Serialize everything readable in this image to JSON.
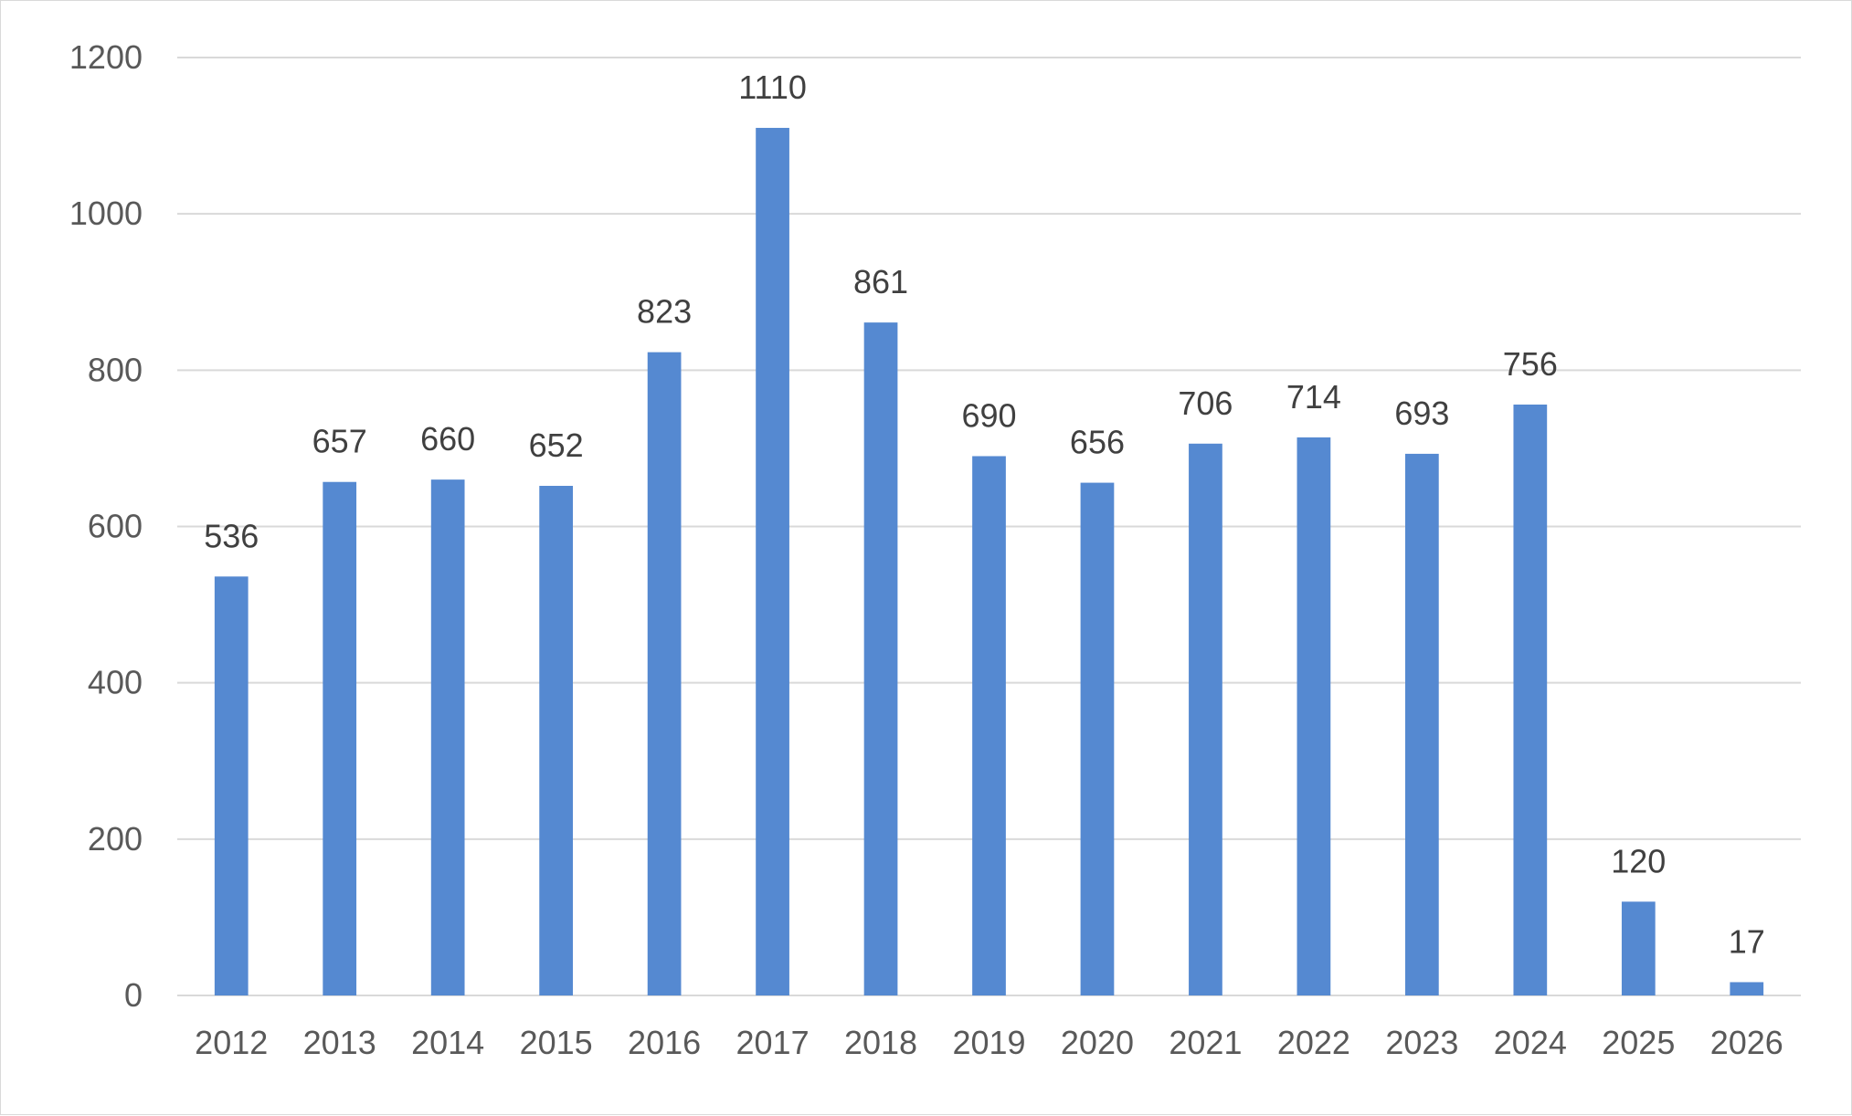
{
  "chart_data": {
    "type": "bar",
    "title": "",
    "xlabel": "",
    "ylabel": "",
    "categories": [
      "2012",
      "2013",
      "2014",
      "2015",
      "2016",
      "2017",
      "2018",
      "2019",
      "2020",
      "2021",
      "2022",
      "2023",
      "2024",
      "2025",
      "2026"
    ],
    "values": [
      536,
      657,
      660,
      652,
      823,
      1110,
      861,
      690,
      656,
      706,
      714,
      693,
      756,
      120,
      17
    ],
    "ylim": [
      0,
      1200
    ],
    "yticks": [
      0,
      200,
      400,
      600,
      800,
      1000,
      1200
    ],
    "grid": true,
    "legend": "none",
    "data_labels": true,
    "colors": {
      "bar": "#5589D1",
      "grid": "#D9D9D9",
      "tick_text": "#595959",
      "label_text": "#404040"
    }
  }
}
